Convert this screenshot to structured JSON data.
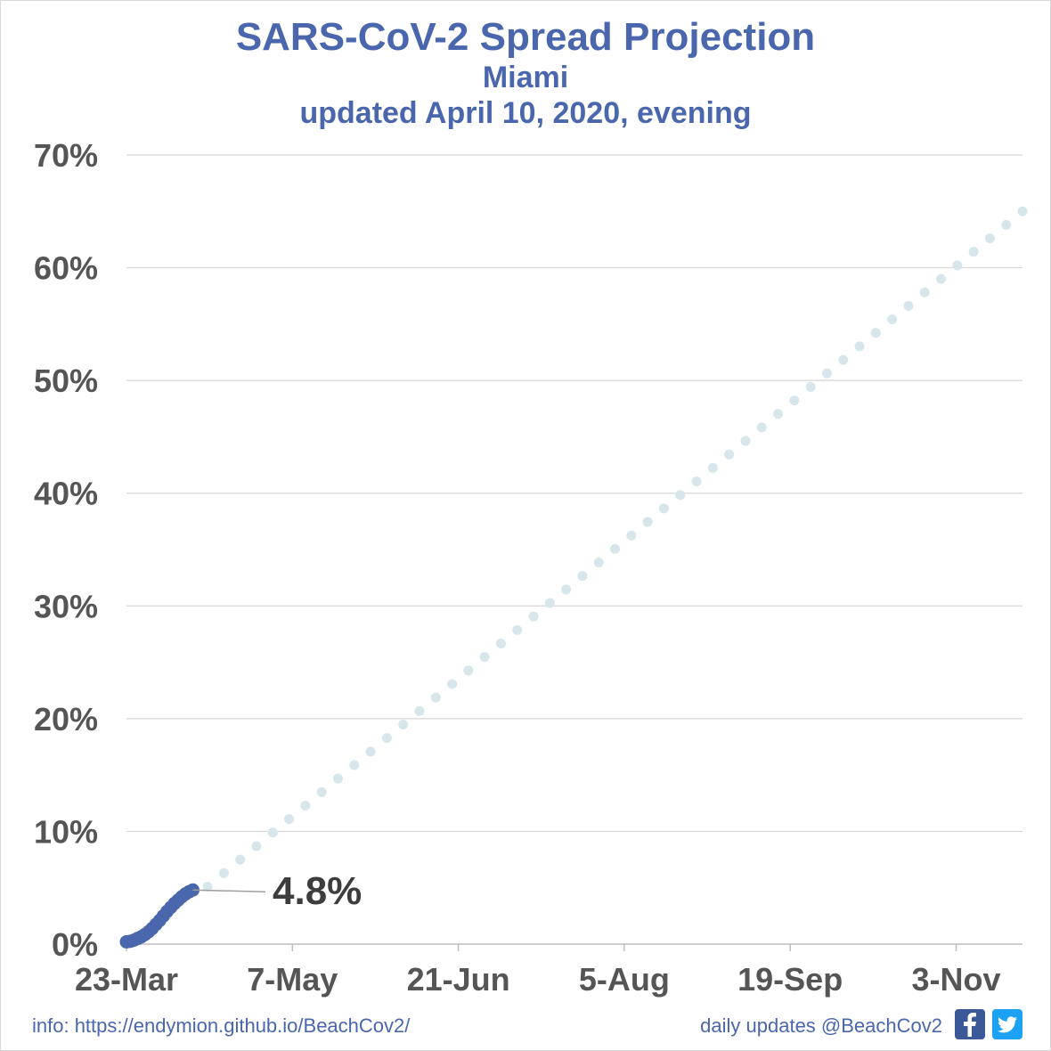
{
  "header": {
    "title": "SARS-CoV-2 Spread Projection",
    "subtitle": "Miami",
    "updated": "updated April 10, 2020, evening"
  },
  "chart_data": {
    "type": "scatter",
    "x_axis": {
      "type": "date",
      "tick_labels": [
        "23-Mar",
        "7-May",
        "21-Jun",
        "5-Aug",
        "19-Sep",
        "3-Nov"
      ],
      "range": [
        "2020-03-23",
        "2020-11-21"
      ]
    },
    "y_axis": {
      "unit": "%",
      "ticks": [
        0,
        10,
        20,
        30,
        40,
        50,
        60,
        70
      ],
      "tick_labels": [
        "0%",
        "10%",
        "20%",
        "30%",
        "40%",
        "50%",
        "60%",
        "70%"
      ],
      "range": [
        0,
        70
      ]
    },
    "grid": "horizontal",
    "series": [
      {
        "role": "observed",
        "color": "#4a66ad",
        "x_range": [
          "2020-03-23",
          "2020-04-10"
        ],
        "points": [
          [
            "2020-03-23",
            0.2
          ],
          [
            "2020-03-24",
            0.25
          ],
          [
            "2020-03-25",
            0.35
          ],
          [
            "2020-03-26",
            0.5
          ],
          [
            "2020-03-27",
            0.65
          ],
          [
            "2020-03-28",
            0.85
          ],
          [
            "2020-03-29",
            1.1
          ],
          [
            "2020-03-30",
            1.4
          ],
          [
            "2020-03-31",
            1.75
          ],
          [
            "2020-04-01",
            2.1
          ],
          [
            "2020-04-02",
            2.5
          ],
          [
            "2020-04-03",
            2.9
          ],
          [
            "2020-04-04",
            3.25
          ],
          [
            "2020-04-05",
            3.6
          ],
          [
            "2020-04-06",
            3.9
          ],
          [
            "2020-04-07",
            4.2
          ],
          [
            "2020-04-08",
            4.45
          ],
          [
            "2020-04-09",
            4.65
          ],
          [
            "2020-04-10",
            4.8
          ]
        ]
      },
      {
        "role": "projection",
        "color": "#d6e6ea",
        "x_range": [
          "2020-04-14",
          "2020-11-21"
        ],
        "interval_days": 4.4,
        "y_start": 5.1,
        "y_end": 65.0
      }
    ],
    "annotation": {
      "x": "2020-04-10",
      "y": 4.8,
      "text": "4.8%"
    }
  },
  "footer": {
    "info": "info: https://endymion.github.io/BeachCov2/",
    "daily": "daily updates @BeachCov2"
  },
  "icons": [
    "facebook-icon",
    "twitter-icon"
  ]
}
